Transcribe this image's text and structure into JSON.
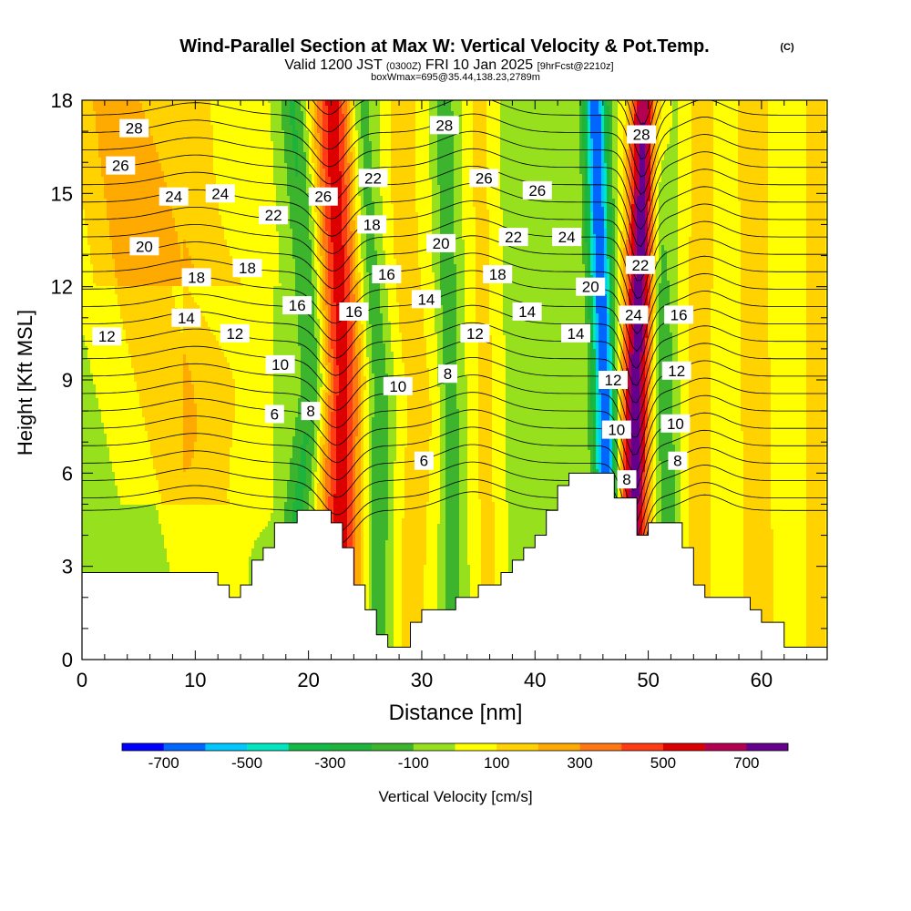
{
  "header": {
    "title_main": "Wind-Parallel Section at Max W: Vertical Velocity & Pot.Temp.",
    "title_tag": "(C)",
    "valid_a": "Valid 1200 JST",
    "valid_b": "(0300Z)",
    "valid_c": "FRI 10 Jan 2025",
    "valid_d": "[9hrFcst@2210z]",
    "box_info": "boxWmax=695@35.44,138.23,2789m"
  },
  "chart_data": {
    "type": "heatmap",
    "xlabel": "Distance [nm]",
    "ylabel": "Height [Kft MSL]",
    "xlim": [
      0,
      65.8
    ],
    "ylim": [
      0,
      18
    ],
    "xticks": [
      0,
      10,
      20,
      30,
      40,
      50,
      60
    ],
    "yticks": [
      0,
      3,
      6,
      9,
      12,
      15,
      18
    ],
    "terrain_kft": [
      [
        0,
        2.8
      ],
      [
        6,
        2.8
      ],
      [
        7,
        2.6
      ],
      [
        12,
        2.6
      ],
      [
        13,
        2.2
      ],
      [
        14,
        2.0
      ],
      [
        15,
        2.8
      ],
      [
        16.5,
        3.8
      ],
      [
        18,
        4.4
      ],
      [
        19.5,
        4.8
      ],
      [
        22,
        4.8
      ],
      [
        23.5,
        3.6
      ],
      [
        24.5,
        2.4
      ],
      [
        26,
        1.4
      ],
      [
        27,
        0.4
      ],
      [
        28.5,
        0.4
      ],
      [
        29.5,
        1.0
      ],
      [
        30.5,
        1.6
      ],
      [
        33,
        1.8
      ],
      [
        35.5,
        2.2
      ],
      [
        37.5,
        2.6
      ],
      [
        39.5,
        3.4
      ],
      [
        41,
        4.2
      ],
      [
        42.5,
        5.4
      ],
      [
        44,
        6.1
      ],
      [
        46.5,
        6.1
      ],
      [
        47,
        5.3
      ],
      [
        48.5,
        5.1
      ],
      [
        49,
        3.9
      ],
      [
        50,
        4.2
      ],
      [
        51.5,
        4.5
      ],
      [
        52.5,
        4.4
      ],
      [
        53.5,
        3.8
      ],
      [
        55,
        1.6
      ],
      [
        56,
        2.0
      ],
      [
        58.5,
        2.0
      ],
      [
        60,
        1.4
      ],
      [
        61.5,
        1.0
      ],
      [
        62.5,
        0.6
      ],
      [
        64,
        0.4
      ],
      [
        65.8,
        0.3
      ]
    ],
    "theta_contour_labels": [
      {
        "x": 4.6,
        "y": 17.1,
        "v": "28"
      },
      {
        "x": 3.4,
        "y": 15.9,
        "v": "26"
      },
      {
        "x": 8.1,
        "y": 14.9,
        "v": "24"
      },
      {
        "x": 12.2,
        "y": 15.0,
        "v": "24"
      },
      {
        "x": 5.5,
        "y": 13.3,
        "v": "20"
      },
      {
        "x": 10.1,
        "y": 12.3,
        "v": "18"
      },
      {
        "x": 14.6,
        "y": 12.6,
        "v": "18"
      },
      {
        "x": 9.2,
        "y": 11.0,
        "v": "14"
      },
      {
        "x": 2.2,
        "y": 10.4,
        "v": "12"
      },
      {
        "x": 13.5,
        "y": 10.5,
        "v": "12"
      },
      {
        "x": 16.9,
        "y": 14.3,
        "v": "22"
      },
      {
        "x": 21.3,
        "y": 14.9,
        "v": "26"
      },
      {
        "x": 19.0,
        "y": 11.4,
        "v": "16"
      },
      {
        "x": 17.5,
        "y": 9.5,
        "v": "10"
      },
      {
        "x": 17.0,
        "y": 7.9,
        "v": "6"
      },
      {
        "x": 20.2,
        "y": 8.0,
        "v": "8"
      },
      {
        "x": 25.7,
        "y": 15.5,
        "v": "22"
      },
      {
        "x": 25.6,
        "y": 14.0,
        "v": "18"
      },
      {
        "x": 24.0,
        "y": 11.2,
        "v": "16"
      },
      {
        "x": 26.9,
        "y": 12.4,
        "v": "16"
      },
      {
        "x": 32.0,
        "y": 17.2,
        "v": "28"
      },
      {
        "x": 35.5,
        "y": 15.5,
        "v": "26"
      },
      {
        "x": 40.2,
        "y": 15.1,
        "v": "26"
      },
      {
        "x": 31.7,
        "y": 13.4,
        "v": "20"
      },
      {
        "x": 38.1,
        "y": 13.6,
        "v": "22"
      },
      {
        "x": 42.8,
        "y": 13.6,
        "v": "24"
      },
      {
        "x": 36.7,
        "y": 12.4,
        "v": "18"
      },
      {
        "x": 30.4,
        "y": 11.6,
        "v": "14"
      },
      {
        "x": 39.3,
        "y": 11.2,
        "v": "14"
      },
      {
        "x": 34.7,
        "y": 10.5,
        "v": "12"
      },
      {
        "x": 43.6,
        "y": 10.5,
        "v": "14"
      },
      {
        "x": 44.9,
        "y": 12.0,
        "v": "20"
      },
      {
        "x": 27.9,
        "y": 8.8,
        "v": "10"
      },
      {
        "x": 32.3,
        "y": 9.2,
        "v": "8"
      },
      {
        "x": 30.2,
        "y": 6.4,
        "v": "6"
      },
      {
        "x": 46.9,
        "y": 9.0,
        "v": "12"
      },
      {
        "x": 47.2,
        "y": 7.4,
        "v": "10"
      },
      {
        "x": 48.1,
        "y": 5.8,
        "v": "8"
      },
      {
        "x": 49.4,
        "y": 16.9,
        "v": "28"
      },
      {
        "x": 49.3,
        "y": 12.7,
        "v": "22"
      },
      {
        "x": 48.7,
        "y": 11.1,
        "v": "24"
      },
      {
        "x": 52.7,
        "y": 11.1,
        "v": "16"
      },
      {
        "x": 52.5,
        "y": 9.3,
        "v": "12"
      },
      {
        "x": 52.4,
        "y": 7.6,
        "v": "10"
      },
      {
        "x": 52.6,
        "y": 6.4,
        "v": "8"
      }
    ]
  },
  "colorbar": {
    "label": "Vertical Velocity [cm/s]",
    "tick_labels": [
      "-700",
      "-500",
      "-300",
      "-100",
      "100",
      "300",
      "500",
      "700"
    ],
    "tick_values": [
      -700,
      -500,
      -300,
      -100,
      100,
      300,
      500,
      700
    ],
    "levels": [
      -800,
      -700,
      -600,
      -500,
      -400,
      -300,
      -200,
      -100,
      0,
      100,
      200,
      300,
      400,
      500,
      600,
      700,
      800
    ],
    "colors": [
      "#0000ff",
      "#0066ff",
      "#00c8ff",
      "#00e6c0",
      "#14b946",
      "#1eb43c",
      "#3cb42d",
      "#96e01e",
      "#ffff00",
      "#ffd200",
      "#ffaa00",
      "#ff7814",
      "#ff3c14",
      "#dc0000",
      "#b40050",
      "#64008c"
    ]
  }
}
